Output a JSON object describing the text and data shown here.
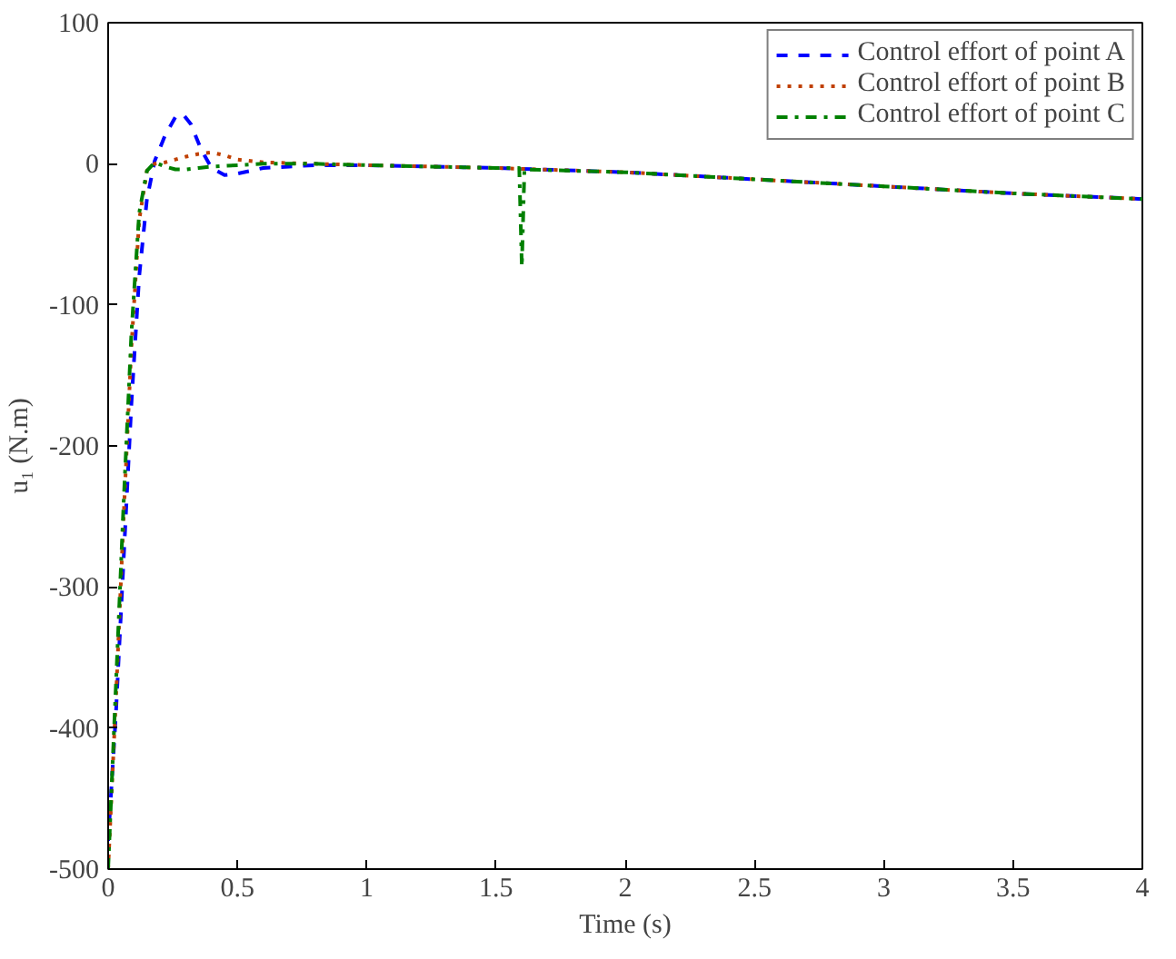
{
  "chart_data": {
    "type": "line",
    "xlabel": "Time (s)",
    "ylabel": "u₁ (N.m)",
    "xlim": [
      0,
      4
    ],
    "ylim": [
      -500,
      100
    ],
    "xticks": [
      0,
      0.5,
      1,
      1.5,
      2,
      2.5,
      3,
      3.5,
      4
    ],
    "yticks": [
      -500,
      -400,
      -300,
      -200,
      -100,
      0,
      100
    ],
    "grid": false,
    "legend": "top right",
    "marker": "none",
    "series": [
      {
        "name": "Control effort of point A",
        "color": "#0000ff",
        "line_style": "dashed",
        "x": [
          0,
          0.03,
          0.06,
          0.09,
          0.12,
          0.15,
          0.18,
          0.22,
          0.26,
          0.29,
          0.32,
          0.36,
          0.4,
          0.45,
          0.5,
          0.55,
          0.6,
          0.7,
          0.8,
          1,
          1.5,
          2,
          2.5,
          3,
          3.5,
          4
        ],
        "values": [
          -480,
          -390,
          -280,
          -170,
          -80,
          -25,
          2,
          20,
          33,
          35,
          28,
          10,
          -3,
          -8,
          -7,
          -5,
          -3,
          -2,
          -1,
          -1,
          -3,
          -6,
          -11,
          -16,
          -21,
          -25
        ]
      },
      {
        "name": "Control effort of point B",
        "color": "#c04000",
        "line_style": "dotted",
        "x": [
          0,
          0.03,
          0.06,
          0.09,
          0.12,
          0.15,
          0.18,
          0.22,
          0.26,
          0.3,
          0.35,
          0.4,
          0.45,
          0.5,
          0.6,
          0.8,
          1,
          1.5,
          2,
          2.5,
          3,
          3.5,
          4
        ],
        "values": [
          -500,
          -380,
          -250,
          -130,
          -40,
          -5,
          0,
          1,
          3,
          5,
          7,
          8,
          6,
          3,
          1,
          0,
          -1,
          -3,
          -6,
          -11,
          -16,
          -21,
          -25
        ]
      },
      {
        "name": "Control effort of point C",
        "color": "#008000",
        "line_style": "dashdot",
        "x": [
          0,
          0.03,
          0.06,
          0.09,
          0.12,
          0.15,
          0.18,
          0.22,
          0.26,
          0.3,
          0.35,
          0.4,
          0.5,
          0.6,
          0.8,
          1,
          1.5,
          1.59,
          1.6,
          1.61,
          2,
          2.5,
          3,
          3.5,
          4
        ],
        "values": [
          -500,
          -370,
          -240,
          -120,
          -35,
          -5,
          1,
          -2,
          -4,
          -4,
          -3,
          -2,
          -1,
          0,
          0,
          -1,
          -3,
          -3,
          -73,
          -4,
          -6,
          -11,
          -16,
          -21,
          -25
        ]
      }
    ]
  }
}
